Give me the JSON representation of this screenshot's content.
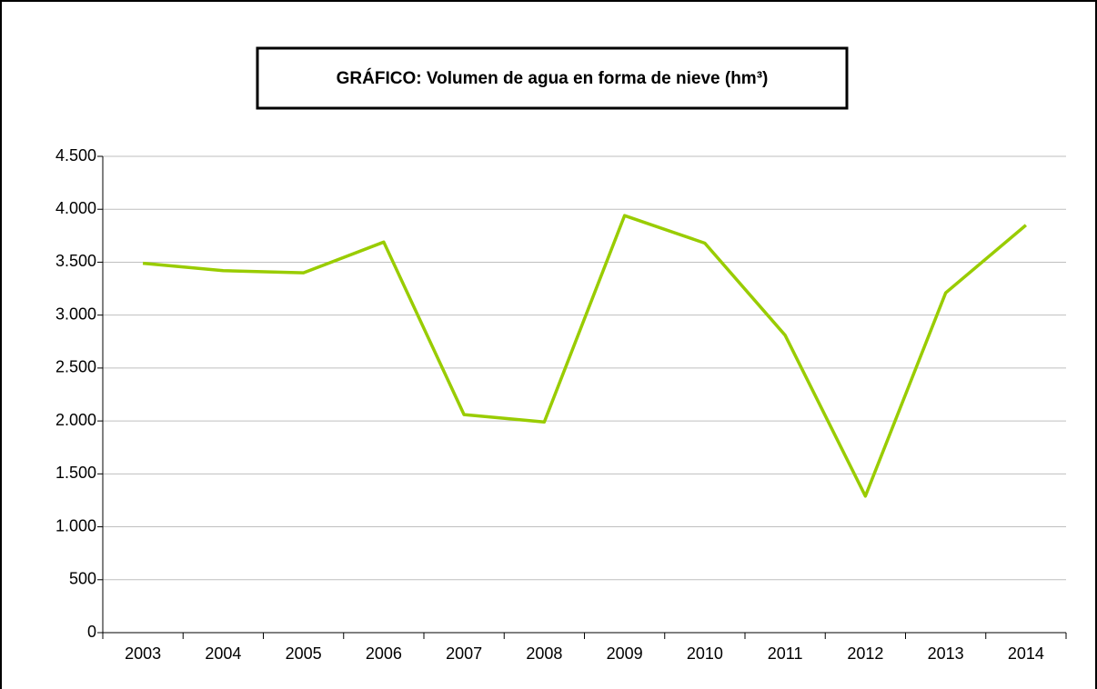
{
  "chart_data": {
    "type": "line",
    "title": "GRÁFICO: Volumen de agua en forma de nieve (hm³)",
    "categories": [
      "2003",
      "2004",
      "2005",
      "2006",
      "2007",
      "2008",
      "2009",
      "2010",
      "2011",
      "2012",
      "2013",
      "2014"
    ],
    "series": [
      {
        "color": "#99cc00",
        "values": [
          3490,
          3420,
          3400,
          3690,
          2060,
          1990,
          3940,
          3680,
          2810,
          1290,
          3210,
          3850
        ]
      }
    ],
    "ylim": [
      0,
      4500
    ],
    "yticks": [
      0,
      500,
      {
        "value": 1000,
        "label": "1.000"
      },
      {
        "value": 1500,
        "label": "1.500"
      },
      {
        "value": 2000,
        "label": "2.000"
      },
      {
        "value": 2500,
        "label": "2.500"
      },
      {
        "value": 3000,
        "label": "3.000"
      },
      {
        "value": 3500,
        "label": "3.500"
      },
      {
        "value": 4000,
        "label": "4.000"
      },
      {
        "value": 4500,
        "label": "4.500"
      }
    ],
    "grid": true
  }
}
